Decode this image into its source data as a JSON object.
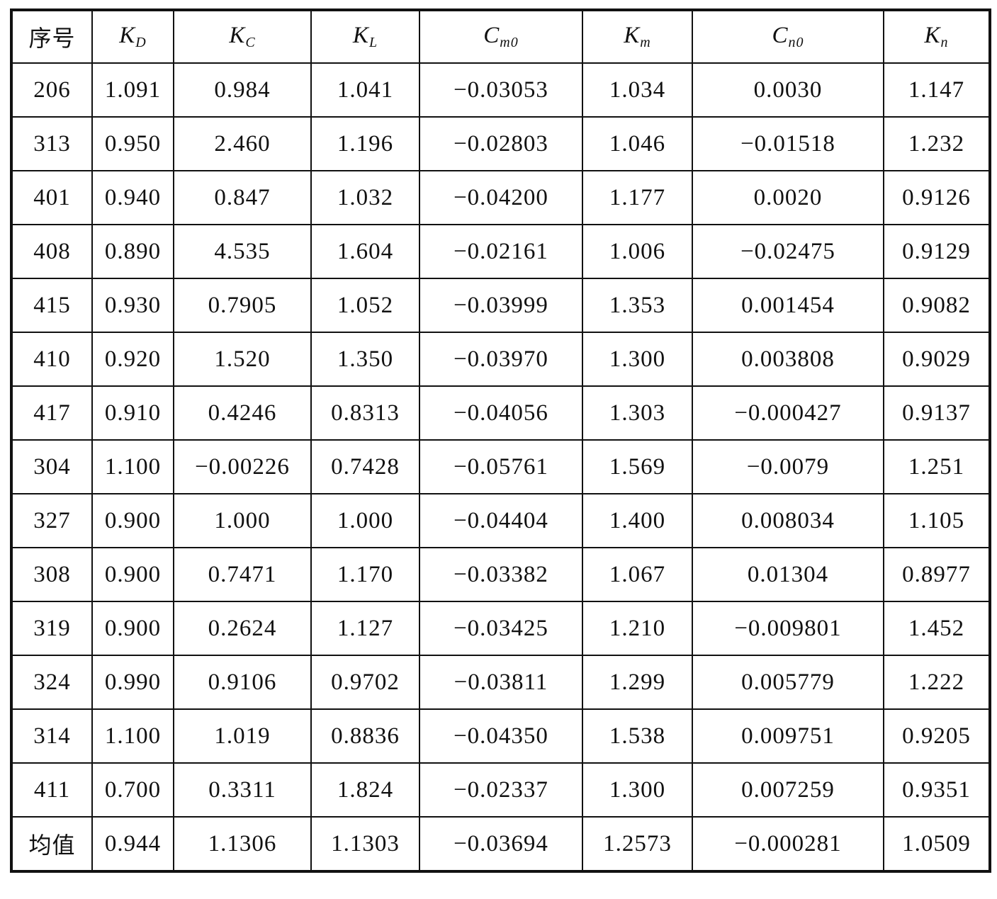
{
  "table": {
    "headers": [
      {
        "main": "序号",
        "sub": ""
      },
      {
        "main": "K",
        "sub": "D"
      },
      {
        "main": "K",
        "sub": "C"
      },
      {
        "main": "K",
        "sub": "L"
      },
      {
        "main": "C",
        "sub": "m0"
      },
      {
        "main": "K",
        "sub": "m"
      },
      {
        "main": "C",
        "sub": "n0"
      },
      {
        "main": "K",
        "sub": "n"
      }
    ],
    "rows": [
      [
        "206",
        "1.091",
        "0.984",
        "1.041",
        "−0.03053",
        "1.034",
        "0.0030",
        "1.147"
      ],
      [
        "313",
        "0.950",
        "2.460",
        "1.196",
        "−0.02803",
        "1.046",
        "−0.01518",
        "1.232"
      ],
      [
        "401",
        "0.940",
        "0.847",
        "1.032",
        "−0.04200",
        "1.177",
        "0.0020",
        "0.9126"
      ],
      [
        "408",
        "0.890",
        "4.535",
        "1.604",
        "−0.02161",
        "1.006",
        "−0.02475",
        "0.9129"
      ],
      [
        "415",
        "0.930",
        "0.7905",
        "1.052",
        "−0.03999",
        "1.353",
        "0.001454",
        "0.9082"
      ],
      [
        "410",
        "0.920",
        "1.520",
        "1.350",
        "−0.03970",
        "1.300",
        "0.003808",
        "0.9029"
      ],
      [
        "417",
        "0.910",
        "0.4246",
        "0.8313",
        "−0.04056",
        "1.303",
        "−0.000427",
        "0.9137"
      ],
      [
        "304",
        "1.100",
        "−0.00226",
        "0.7428",
        "−0.05761",
        "1.569",
        "−0.0079",
        "1.251"
      ],
      [
        "327",
        "0.900",
        "1.000",
        "1.000",
        "−0.04404",
        "1.400",
        "0.008034",
        "1.105"
      ],
      [
        "308",
        "0.900",
        "0.7471",
        "1.170",
        "−0.03382",
        "1.067",
        "0.01304",
        "0.8977"
      ],
      [
        "319",
        "0.900",
        "0.2624",
        "1.127",
        "−0.03425",
        "1.210",
        "−0.009801",
        "1.452"
      ],
      [
        "324",
        "0.990",
        "0.9106",
        "0.9702",
        "−0.03811",
        "1.299",
        "0.005779",
        "1.222"
      ],
      [
        "314",
        "1.100",
        "1.019",
        "0.8836",
        "−0.04350",
        "1.538",
        "0.009751",
        "0.9205"
      ],
      [
        "411",
        "0.700",
        "0.3311",
        "1.824",
        "−0.02337",
        "1.300",
        "0.007259",
        "0.9351"
      ],
      [
        "均值",
        "0.944",
        "1.1306",
        "1.1303",
        "−0.03694",
        "1.2573",
        "−0.000281",
        "1.0509"
      ]
    ]
  }
}
